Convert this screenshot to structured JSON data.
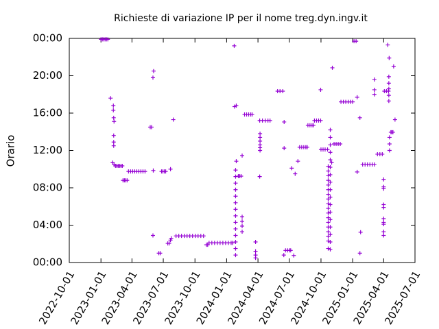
{
  "chart_data": {
    "type": "scatter",
    "title": "Richieste di variazione IP per il nome treg.dyn.ingv.it",
    "y_label": "Orario",
    "color": "#9400d3",
    "xlim": [
      "2022-10-01",
      "2025-07-01"
    ],
    "xticks": [
      "2022-10-01",
      "2023-01-01",
      "2023-04-01",
      "2023-07-01",
      "2023-10-01",
      "2024-01-01",
      "2024-04-01",
      "2024-07-01",
      "2024-10-01",
      "2025-01-01",
      "2025-04-01",
      "2025-07-01"
    ],
    "ylim": [
      0,
      24
    ],
    "yticks": [
      {
        "value": 0,
        "label": "00:00"
      },
      {
        "value": 4,
        "label": "04:00"
      },
      {
        "value": 8,
        "label": "08:00"
      },
      {
        "value": 12,
        "label": "12:00"
      },
      {
        "value": 16,
        "label": "16:00"
      },
      {
        "value": 20,
        "label": "20:00"
      },
      {
        "value": 24,
        "label": "00:00"
      }
    ],
    "grid": false,
    "x": [
      "2023-01-01",
      "2023-01-05",
      "2023-01-09",
      "2023-01-13",
      "2023-01-17",
      "2023-01-21",
      "2023-01-29",
      "2023-02-06",
      "2023-02-06",
      "2023-02-07",
      "2023-02-08",
      "2023-02-07",
      "2023-02-07",
      "2023-02-07",
      "2023-02-04",
      "2023-02-08",
      "2023-02-12",
      "2023-02-16",
      "2023-02-20",
      "2023-02-24",
      "2023-02-28",
      "2023-03-04",
      "2023-03-06",
      "2023-03-10",
      "2023-03-14",
      "2023-03-18",
      "2023-03-22",
      "2023-03-28",
      "2023-04-03",
      "2023-04-09",
      "2023-04-15",
      "2023-04-21",
      "2023-04-27",
      "2023-05-03",
      "2023-05-09",
      "2023-05-24",
      "2023-05-28",
      "2023-06-01",
      "2023-06-03",
      "2023-06-02",
      "2023-06-01",
      "2023-06-18",
      "2023-06-22",
      "2023-06-26",
      "2023-06-30",
      "2023-07-04",
      "2023-07-08",
      "2023-07-22",
      "2023-07-14",
      "2023-07-18",
      "2023-07-22",
      "2023-07-24",
      "2023-07-30",
      "2023-08-07",
      "2023-08-15",
      "2023-08-23",
      "2023-08-31",
      "2023-09-08",
      "2023-09-16",
      "2023-09-24",
      "2023-10-02",
      "2023-10-10",
      "2023-10-18",
      "2023-10-26",
      "2023-11-03",
      "2023-11-07",
      "2023-11-11",
      "2023-11-19",
      "2023-11-27",
      "2023-12-05",
      "2023-12-13",
      "2023-12-21",
      "2023-12-29",
      "2024-01-06",
      "2024-01-14",
      "2024-01-18",
      "2024-01-23",
      "2024-01-24",
      "2024-01-29",
      "2024-01-29",
      "2024-01-27",
      "2024-01-27",
      "2024-01-27",
      "2024-01-27",
      "2024-01-27",
      "2024-01-27",
      "2024-01-27",
      "2024-01-27",
      "2024-01-27",
      "2024-01-27",
      "2024-01-27",
      "2024-01-27",
      "2024-01-27",
      "2024-01-27",
      "2024-02-04",
      "2024-02-08",
      "2024-02-12",
      "2024-02-15",
      "2024-02-15",
      "2024-02-15",
      "2024-02-15",
      "2024-02-15",
      "2024-02-22",
      "2024-02-28",
      "2024-03-05",
      "2024-03-11",
      "2024-03-15",
      "2024-03-25",
      "2024-03-25",
      "2024-03-25",
      "2024-03-25",
      "2024-04-06",
      "2024-04-07",
      "2024-04-07",
      "2024-04-07",
      "2024-04-07",
      "2024-04-07",
      "2024-04-07",
      "2024-04-06",
      "2024-04-14",
      "2024-04-22",
      "2024-04-30",
      "2024-05-06",
      "2024-05-28",
      "2024-06-04",
      "2024-06-12",
      "2024-06-16",
      "2024-06-16",
      "2024-06-15",
      "2024-06-20",
      "2024-06-26",
      "2024-07-02",
      "2024-07-05",
      "2024-07-08",
      "2024-07-18",
      "2024-07-14",
      "2024-07-26",
      "2024-07-31",
      "2024-08-06",
      "2024-08-12",
      "2024-08-18",
      "2024-08-22",
      "2024-08-24",
      "2024-08-30",
      "2024-09-05",
      "2024-09-09",
      "2024-09-12",
      "2024-09-18",
      "2024-09-24",
      "2024-09-30",
      "2024-09-30",
      "2024-10-01",
      "2024-10-07",
      "2024-10-13",
      "2024-10-20",
      "2024-10-22",
      "2024-10-22",
      "2024-10-22",
      "2024-10-22",
      "2024-10-22",
      "2024-10-22",
      "2024-10-22",
      "2024-10-22",
      "2024-10-22",
      "2024-10-22",
      "2024-10-22",
      "2024-10-22",
      "2024-10-22",
      "2024-10-22",
      "2024-10-22",
      "2024-10-22",
      "2024-10-22",
      "2024-10-22",
      "2024-10-28",
      "2024-10-28",
      "2024-10-28",
      "2024-10-28",
      "2024-10-28",
      "2024-10-28",
      "2024-10-28",
      "2024-10-28",
      "2024-10-28",
      "2024-10-28",
      "2024-10-28",
      "2024-10-28",
      "2024-10-28",
      "2024-10-28",
      "2024-10-28",
      "2024-10-28",
      "2024-10-28",
      "2024-11-01",
      "2024-11-03",
      "2024-11-08",
      "2024-11-14",
      "2024-11-20",
      "2024-11-26",
      "2024-11-28",
      "2024-12-05",
      "2024-12-12",
      "2024-12-19",
      "2024-12-26",
      "2025-01-01",
      "2025-01-05",
      "2025-01-11",
      "2025-01-14",
      "2025-01-14",
      "2025-01-22",
      "2025-01-24",
      "2025-01-22",
      "2025-01-30",
      "2025-02-06",
      "2025-02-13",
      "2025-02-20",
      "2025-02-27",
      "2025-03-05",
      "2025-03-14",
      "2025-03-21",
      "2025-03-28",
      "2025-03-05",
      "2025-03-05",
      "2025-03-05",
      "2025-04-01",
      "2025-04-01",
      "2025-04-01",
      "2025-04-01",
      "2025-04-01",
      "2025-04-01",
      "2025-04-01",
      "2025-04-01",
      "2025-04-01",
      "2025-04-01",
      "2025-04-03",
      "2025-04-09",
      "2025-04-15",
      "2025-04-13",
      "2025-04-17",
      "2025-04-30",
      "2025-04-16",
      "2025-04-16",
      "2025-04-16",
      "2025-04-16",
      "2025-04-16",
      "2025-04-22",
      "2025-04-25",
      "2025-04-28",
      "2025-04-18",
      "2025-04-18",
      "2025-04-18",
      "2025-05-04"
    ],
    "values": [
      23.9,
      23.9,
      23.9,
      23.9,
      23.9,
      23.9,
      17.6,
      16.8,
      16.3,
      15.5,
      15.1,
      13.6,
      12.9,
      12.5,
      10.7,
      10.5,
      10.35,
      10.35,
      10.35,
      10.35,
      10.35,
      10.35,
      8.8,
      8.8,
      8.8,
      8.8,
      9.75,
      9.75,
      9.75,
      9.75,
      9.75,
      9.75,
      9.75,
      9.75,
      9.75,
      14.5,
      14.5,
      19.8,
      20.5,
      9.85,
      2.9,
      1.0,
      1.0,
      9.75,
      9.75,
      9.75,
      9.75,
      10.0,
      2.05,
      2.05,
      2.4,
      2.6,
      15.3,
      2.85,
      2.85,
      2.85,
      2.85,
      2.85,
      2.85,
      2.85,
      2.85,
      2.85,
      2.85,
      2.85,
      1.9,
      1.9,
      2.1,
      2.1,
      2.1,
      2.1,
      2.1,
      2.1,
      2.1,
      2.1,
      2.1,
      2.1,
      23.2,
      16.7,
      16.8,
      10.85,
      9.9,
      9.2,
      8.5,
      7.8,
      7.1,
      6.4,
      5.7,
      5.0,
      4.3,
      3.6,
      2.9,
      2.2,
      1.5,
      0.8,
      9.25,
      9.25,
      9.25,
      11.45,
      4.9,
      4.4,
      3.9,
      3.3,
      15.85,
      15.85,
      15.85,
      15.85,
      15.85,
      2.2,
      1.2,
      0.8,
      0.5,
      9.2,
      13.8,
      13.4,
      13.0,
      12.6,
      12.3,
      12.0,
      15.2,
      15.2,
      15.2,
      15.2,
      15.2,
      18.35,
      18.35,
      18.35,
      15.05,
      12.25,
      0.8,
      1.3,
      1.3,
      1.3,
      1.3,
      10.1,
      9.5,
      0.75,
      10.85,
      12.35,
      12.35,
      12.35,
      12.35,
      12.35,
      14.7,
      14.7,
      14.7,
      14.7,
      15.2,
      15.2,
      15.2,
      15.2,
      18.5,
      12.1,
      12.1,
      12.1,
      12.1,
      10.3,
      9.8,
      9.3,
      8.8,
      8.3,
      7.8,
      7.3,
      6.8,
      6.3,
      5.8,
      5.3,
      4.8,
      4.3,
      3.8,
      3.3,
      2.8,
      2.3,
      1.5,
      14.2,
      13.4,
      12.6,
      11.8,
      11.0,
      10.2,
      9.4,
      8.6,
      7.8,
      7.0,
      6.2,
      5.4,
      4.6,
      3.8,
      3.0,
      2.2,
      1.4,
      10.7,
      20.85,
      12.7,
      12.7,
      12.7,
      12.7,
      17.2,
      17.2,
      17.2,
      17.2,
      17.2,
      17.2,
      23.7,
      23.7,
      17.7,
      9.7,
      15.5,
      3.25,
      1.0,
      10.5,
      10.5,
      10.5,
      10.5,
      10.5,
      10.5,
      11.6,
      11.6,
      11.6,
      19.6,
      18.5,
      18.0,
      8.9,
      8.1,
      7.9,
      6.2,
      5.9,
      4.7,
      4.3,
      4.1,
      3.3,
      2.9,
      18.35,
      18.35,
      18.35,
      23.3,
      21.9,
      21.0,
      19.9,
      19.2,
      18.6,
      17.9,
      17.3,
      13.95,
      13.95,
      13.95,
      13.4,
      12.7,
      12.0,
      15.3
    ]
  }
}
